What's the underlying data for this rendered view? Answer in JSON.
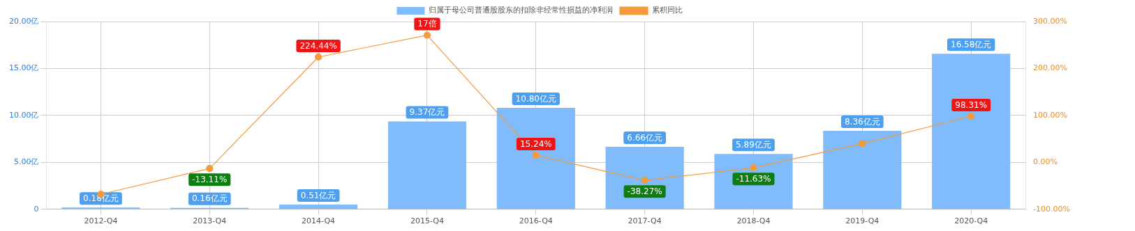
{
  "chart_data": {
    "type": "bar",
    "categories": [
      "2012-Q4",
      "2013-Q4",
      "2014-Q4",
      "2015-Q4",
      "2016-Q4",
      "2017-Q4",
      "2018-Q4",
      "2019-Q4",
      "2020-Q4"
    ],
    "series": [
      {
        "name": "归属于母公司普通股股东的扣除非经常性损益的净利润",
        "color": "#80bcfc",
        "values": [
          0.18,
          0.16,
          0.51,
          9.37,
          10.8,
          6.66,
          5.89,
          8.36,
          16.58
        ],
        "value_labels": [
          "0.18亿元",
          "0.16亿元",
          "0.51亿元",
          "9.37亿元",
          "10.80亿元",
          "6.66亿元",
          "5.89亿元",
          "8.36亿元",
          "16.58亿元"
        ]
      },
      {
        "name": "累积同比",
        "type": "line",
        "axis": "y2",
        "color": "#f39a3d",
        "values": [
          -68,
          -13.11,
          224.44,
          271,
          15.24,
          -38.27,
          -11.63,
          40,
          98.31
        ],
        "value_labels": [
          null,
          "-13.11%",
          "224.44%",
          null,
          "15.24%",
          "-38.27%",
          "-11.63%",
          null,
          "98.31%"
        ]
      }
    ],
    "ylim": [
      0,
      20
    ],
    "yticks": [
      0,
      {
        "value": 5,
        "label": "5.00亿"
      },
      {
        "value": 10,
        "label": "10.00亿"
      },
      {
        "value": 15,
        "label": "15.00亿"
      },
      {
        "value": 20,
        "label": "20.00亿"
      }
    ],
    "y2lim": [
      -100,
      300
    ],
    "y2ticks": [
      {
        "value": -100,
        "label": "-100.00%"
      },
      {
        "value": 0,
        "label": "0.00%"
      },
      {
        "value": 100,
        "label": "100.00%"
      },
      {
        "value": 200,
        "label": "200.00%"
      },
      {
        "value": 300,
        "label": "300.00%"
      }
    ],
    "annotations": [
      "17倍"
    ],
    "grid": true,
    "legend": "top",
    "marker": "circle",
    "line_style": "solid"
  }
}
